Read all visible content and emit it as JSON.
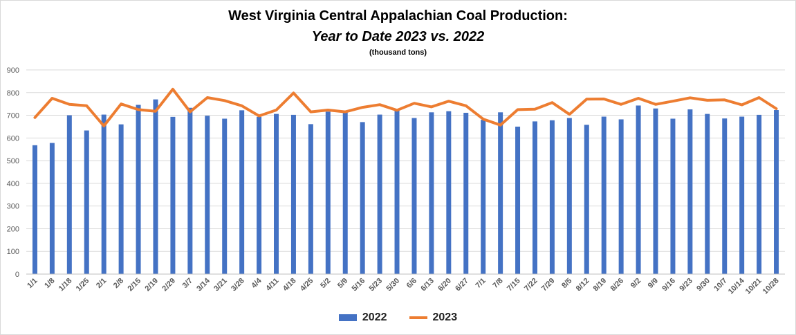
{
  "chart_data": {
    "type": "bar",
    "title": "West Virginia Central Appalachian Coal Production:",
    "subtitle": "Year to Date 2023 vs. 2022",
    "units": "(thousand tons)",
    "ylim": [
      0,
      900
    ],
    "yticks": [
      0,
      100,
      200,
      300,
      400,
      500,
      600,
      700,
      800,
      900
    ],
    "grid": true,
    "legend_position": "bottom",
    "categories": [
      "1/1",
      "1/8",
      "1/18",
      "1/25",
      "2/1",
      "2/8",
      "2/15",
      "2/19",
      "2/29",
      "3/7",
      "3/14",
      "3/21",
      "3/28",
      "4/4",
      "4/11",
      "4/18",
      "4/25",
      "5/2",
      "5/9",
      "5/16",
      "5/23",
      "5/30",
      "6/6",
      "6/13",
      "6/20",
      "6/27",
      "7/1",
      "7/8",
      "7/15",
      "7/22",
      "7/29",
      "8/5",
      "8/12",
      "8/19",
      "8/26",
      "9/2",
      "9/9",
      "9/16",
      "9/23",
      "9/30",
      "10/7",
      "10/14",
      "10/21",
      "10/28"
    ],
    "series": [
      {
        "name": "2022",
        "kind": "bar",
        "color": "#4472c4",
        "values": [
          568,
          578,
          700,
          633,
          703,
          660,
          746,
          770,
          693,
          733,
          698,
          685,
          722,
          693,
          706,
          702,
          661,
          716,
          713,
          670,
          703,
          722,
          688,
          713,
          718,
          711,
          680,
          713,
          650,
          673,
          678,
          688,
          658,
          694,
          682,
          743,
          730,
          685,
          726,
          706,
          686,
          694,
          702,
          723
        ]
      },
      {
        "name": "2023",
        "kind": "line",
        "color": "#ed7d31",
        "values": [
          690,
          775,
          748,
          742,
          653,
          750,
          725,
          718,
          815,
          715,
          778,
          765,
          742,
          697,
          723,
          798,
          715,
          723,
          715,
          735,
          747,
          722,
          753,
          737,
          762,
          742,
          683,
          657,
          725,
          727,
          756,
          704,
          771,
          772,
          748,
          775,
          748,
          762,
          777,
          766,
          768,
          746,
          778,
          729
        ]
      }
    ]
  }
}
